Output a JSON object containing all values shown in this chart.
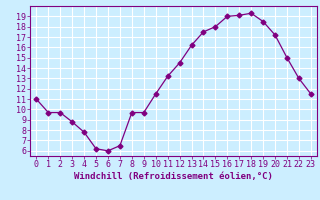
{
  "x": [
    0,
    1,
    2,
    3,
    4,
    5,
    6,
    7,
    8,
    9,
    10,
    11,
    12,
    13,
    14,
    15,
    16,
    17,
    18,
    19,
    20,
    21,
    22,
    23
  ],
  "y": [
    11.0,
    9.7,
    9.7,
    8.8,
    7.8,
    6.2,
    6.0,
    6.5,
    9.7,
    9.7,
    11.5,
    13.2,
    14.5,
    16.2,
    17.5,
    18.0,
    19.0,
    19.1,
    19.3,
    18.5,
    17.2,
    15.0,
    13.0,
    11.5
  ],
  "line_color": "#800080",
  "marker": "D",
  "marker_size": 2.5,
  "bg_color": "#cceeff",
  "grid_color": "#ffffff",
  "xlabel": "Windchill (Refroidissement éolien,°C)",
  "ylabel": "",
  "xlim": [
    -0.5,
    23.5
  ],
  "ylim": [
    5.5,
    20.0
  ],
  "yticks": [
    6,
    7,
    8,
    9,
    10,
    11,
    12,
    13,
    14,
    15,
    16,
    17,
    18,
    19
  ],
  "xticks": [
    0,
    1,
    2,
    3,
    4,
    5,
    6,
    7,
    8,
    9,
    10,
    11,
    12,
    13,
    14,
    15,
    16,
    17,
    18,
    19,
    20,
    21,
    22,
    23
  ],
  "tick_color": "#800080",
  "axis_color": "#800080",
  "xlabel_color": "#800080",
  "label_fontsize": 6.5,
  "tick_fontsize": 6.0
}
